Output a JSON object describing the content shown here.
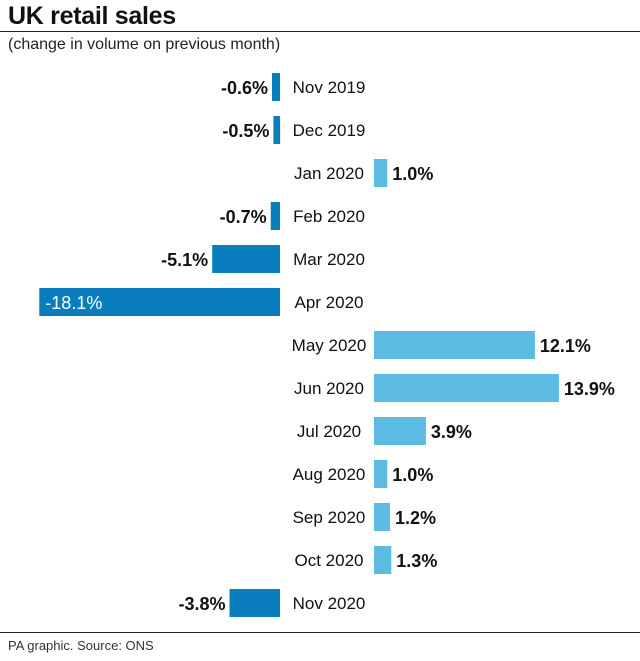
{
  "header": {
    "title": "UK retail sales",
    "subtitle": "(change in volume on previous month)"
  },
  "footer": {
    "source": "PA graphic. Source: ONS"
  },
  "colors": {
    "negative": "#0a7dbf",
    "positive": "#5bbbe3"
  },
  "chart_data": {
    "type": "bar",
    "orientation": "horizontal",
    "categories": [
      "Nov 2019",
      "Dec 2019",
      "Jan 2020",
      "Feb 2020",
      "Mar 2020",
      "Apr 2020",
      "May 2020",
      "Jun 2020",
      "Jul 2020",
      "Aug 2020",
      "Sep 2020",
      "Oct 2020",
      "Nov 2020"
    ],
    "values": [
      -0.6,
      -0.5,
      1.0,
      -0.7,
      -5.1,
      -18.1,
      12.1,
      13.9,
      3.9,
      1.0,
      1.2,
      1.3,
      -3.8
    ],
    "labels": [
      "-0.6%",
      "-0.5%",
      "1.0%",
      "-0.7%",
      "-5.1%",
      "-18.1%",
      "12.1%",
      "13.9%",
      "3.9%",
      "1.0%",
      "1.2%",
      "1.3%",
      "-3.8%"
    ],
    "title": "UK retail sales",
    "subtitle": "(change in volume on previous month)",
    "grid": false,
    "legend": "none"
  }
}
